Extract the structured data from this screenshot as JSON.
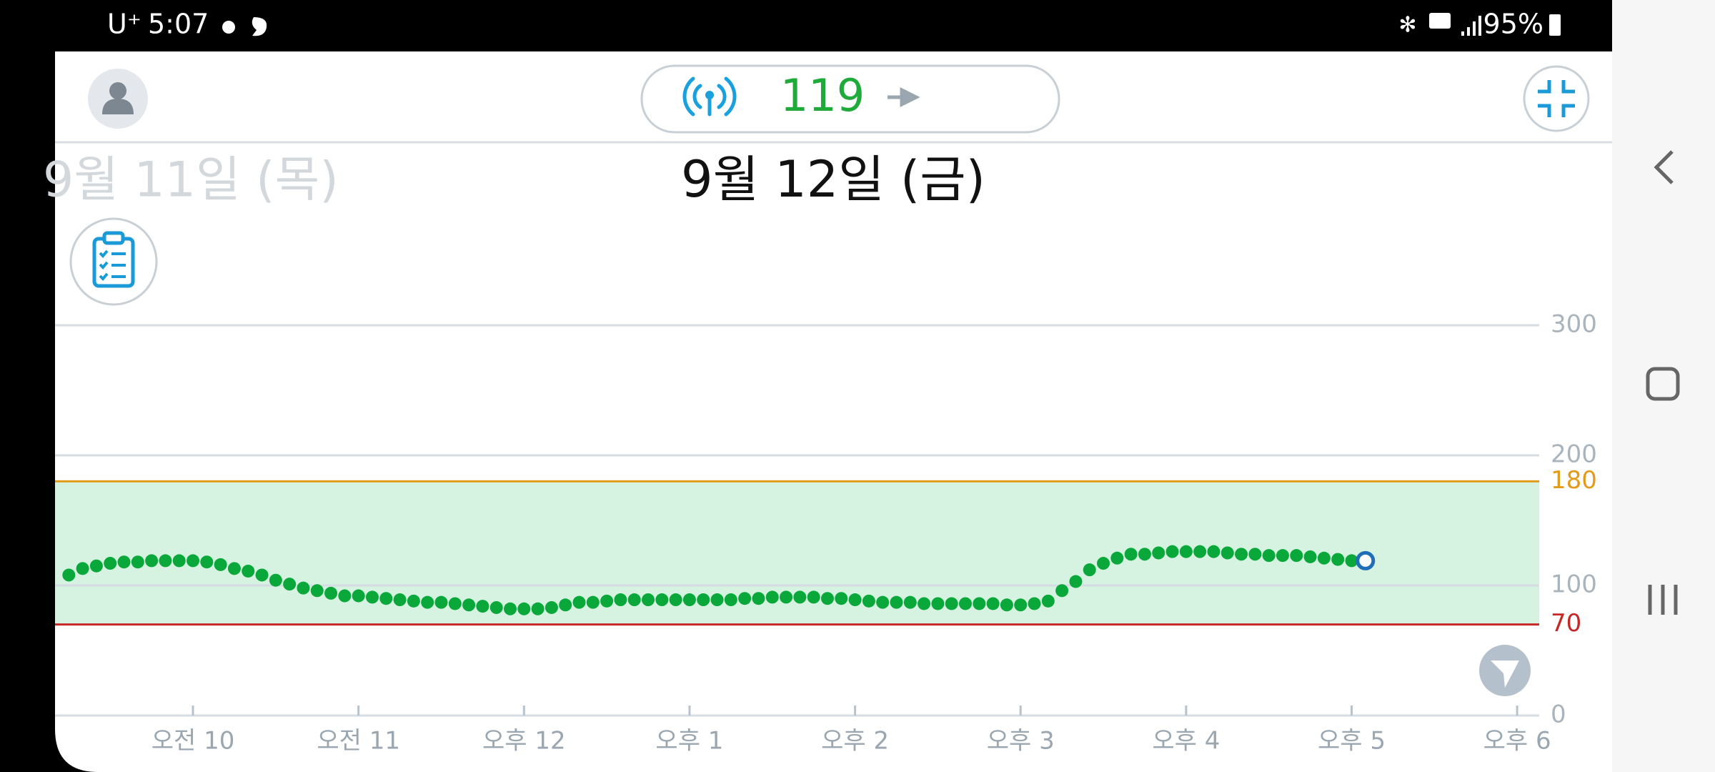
{
  "status_bar": {
    "carrier": "U⁺",
    "time": "5:07",
    "battery": "95%"
  },
  "header": {
    "glucose": 119
  },
  "previous_date": "9월 11일 (목)",
  "date": "9월 12일 (금)",
  "chart_data": {
    "type": "scatter",
    "x": [
      555,
      560,
      565,
      570,
      575,
      580,
      585,
      590,
      595,
      600,
      605,
      610,
      615,
      620,
      625,
      630,
      635,
      640,
      645,
      650,
      655,
      660,
      665,
      670,
      675,
      680,
      685,
      690,
      695,
      700,
      705,
      710,
      715,
      720,
      725,
      730,
      735,
      740,
      745,
      750,
      755,
      760,
      765,
      770,
      775,
      780,
      785,
      790,
      795,
      800,
      805,
      810,
      815,
      820,
      825,
      830,
      835,
      840,
      845,
      850,
      855,
      860,
      865,
      870,
      875,
      880,
      885,
      890,
      895,
      900,
      905,
      910,
      915,
      920,
      925,
      930,
      935,
      940,
      945,
      950,
      955,
      960,
      965,
      970,
      975,
      980,
      985,
      990,
      995,
      1000,
      1005,
      1010,
      1015,
      1020,
      1025
    ],
    "values": [
      108,
      113,
      115,
      117,
      118,
      118,
      119,
      119,
      119,
      119,
      118,
      116,
      113,
      111,
      108,
      104,
      101,
      98,
      96,
      94,
      92,
      92,
      91,
      90,
      89,
      88,
      87,
      87,
      86,
      85,
      84,
      83,
      82,
      82,
      82,
      83,
      85,
      87,
      87,
      88,
      89,
      89,
      89,
      89,
      89,
      89,
      89,
      89,
      89,
      90,
      90,
      91,
      91,
      91,
      91,
      90,
      90,
      89,
      88,
      87,
      87,
      87,
      86,
      86,
      86,
      86,
      86,
      86,
      85,
      85,
      86,
      88,
      96,
      103,
      112,
      117,
      121,
      124,
      124,
      125,
      126,
      126,
      126,
      126,
      125,
      124,
      124,
      123,
      123,
      123,
      122,
      121,
      120,
      119,
      119
    ],
    "color": "#0aa83a",
    "xlim": [
      550,
      1088
    ],
    "xticks": [
      {
        "value": 600,
        "label": "오전 10"
      },
      {
        "value": 660,
        "label": "오전 11"
      },
      {
        "value": 720,
        "label": "오후 12"
      },
      {
        "value": 780,
        "label": "오후 1"
      },
      {
        "value": 840,
        "label": "오후 2"
      },
      {
        "value": 900,
        "label": "오후 3"
      },
      {
        "value": 960,
        "label": "오후 4"
      },
      {
        "value": 1020,
        "label": "오후 5"
      },
      {
        "value": 1080,
        "label": "오후 6"
      }
    ],
    "ylim": [
      0,
      300
    ],
    "yticks": [
      0,
      100,
      200,
      300
    ],
    "grid": true,
    "target_range": {
      "low": 70,
      "high": 180,
      "low_color": "#c62828",
      "high_color": "#e39b1c",
      "fill": "#d6f3e2"
    }
  }
}
